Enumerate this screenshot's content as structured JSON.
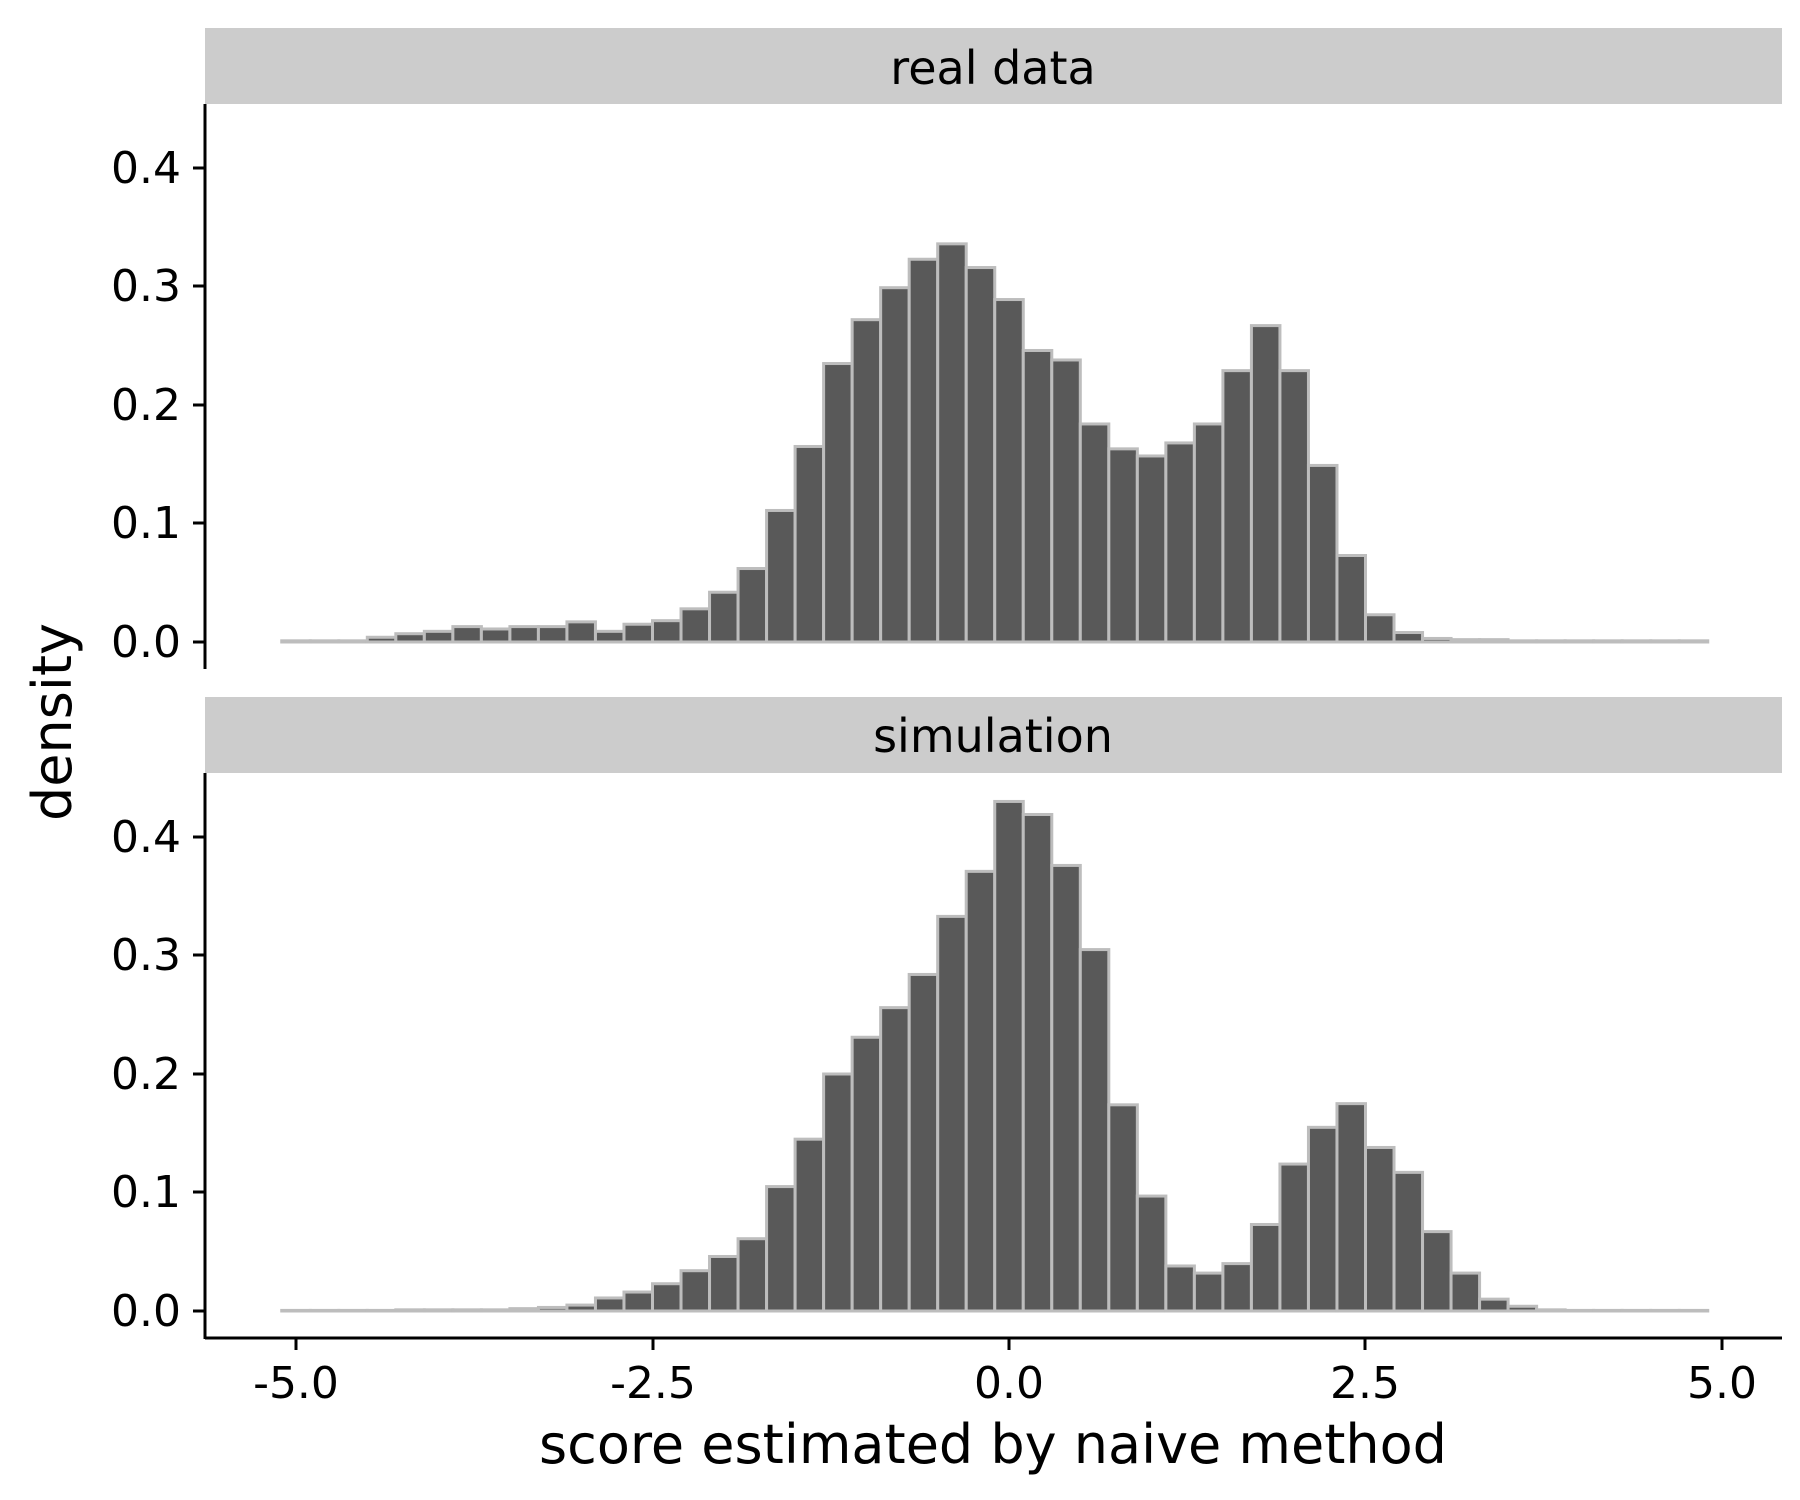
{
  "chart_data": {
    "type": "bar",
    "xlabel": "score estimated by naive method",
    "ylabel": "density",
    "xlim": [
      -5.0,
      5.0
    ],
    "ylim": [
      0,
      0.45
    ],
    "x_ticks": [
      "-5.0",
      "-2.5",
      "0.0",
      "2.5",
      "5.0"
    ],
    "y_ticks": [
      "0.0",
      "0.1",
      "0.2",
      "0.3",
      "0.4"
    ],
    "bin_start": -5.1,
    "bin_width": 0.2,
    "colors": {
      "fill": "#595959",
      "outline": "#bdbdbd",
      "strip": "#cccccc"
    },
    "panels": [
      {
        "strip": "real data",
        "values": [
          0.001,
          0.001,
          0.001,
          0.004,
          0.007,
          0.009,
          0.013,
          0.011,
          0.013,
          0.013,
          0.017,
          0.009,
          0.015,
          0.018,
          0.028,
          0.042,
          0.062,
          0.111,
          0.165,
          0.235,
          0.272,
          0.299,
          0.323,
          0.336,
          0.316,
          0.289,
          0.246,
          0.238,
          0.184,
          0.163,
          0.157,
          0.168,
          0.184,
          0.229,
          0.267,
          0.229,
          0.149,
          0.073,
          0.023,
          0.008,
          0.003,
          0.002,
          0.002,
          0.001,
          0.001,
          0.001,
          0.001,
          0.001,
          0.001,
          0.001
        ]
      },
      {
        "strip": "simulation",
        "values": [
          0.0005,
          0.0005,
          0.0005,
          0.0005,
          0.001,
          0.001,
          0.001,
          0.001,
          0.002,
          0.003,
          0.005,
          0.011,
          0.016,
          0.023,
          0.034,
          0.046,
          0.061,
          0.105,
          0.145,
          0.2,
          0.231,
          0.256,
          0.284,
          0.333,
          0.371,
          0.43,
          0.419,
          0.376,
          0.305,
          0.174,
          0.097,
          0.038,
          0.032,
          0.04,
          0.073,
          0.124,
          0.155,
          0.175,
          0.138,
          0.117,
          0.067,
          0.032,
          0.01,
          0.004,
          0.001,
          0.0005,
          0.0005,
          0.0005,
          0.0005,
          0.0005
        ]
      }
    ]
  }
}
